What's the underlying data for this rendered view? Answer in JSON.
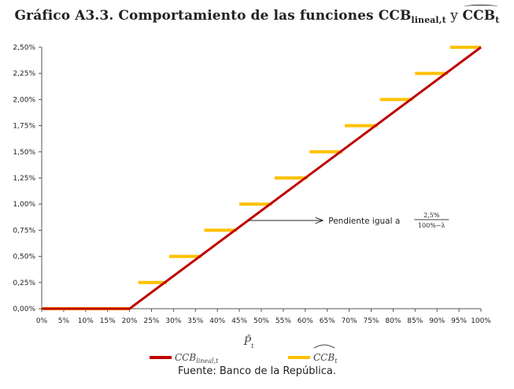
{
  "title": {
    "prefix": "Gráfico A3.3. Comportamiento de las funciones ",
    "s1_main": "CCB",
    "s1_sub": "lineal,t",
    "joiner": " y ",
    "s2_main": "CCB",
    "s2_sub": "t"
  },
  "source": "Fuente: Banco de la República.",
  "chart_data": {
    "type": "line",
    "xlabel": "P̂",
    "xlabel_sub": "t",
    "x_ticks": [
      "0%",
      "5%",
      "10%",
      "15%",
      "20%",
      "25%",
      "30%",
      "35%",
      "40%",
      "45%",
      "50%",
      "55%",
      "60%",
      "65%",
      "70%",
      "75%",
      "80%",
      "85%",
      "90%",
      "95%",
      "100%"
    ],
    "y_ticks": [
      "0,00%",
      "0,25%",
      "0,50%",
      "0,75%",
      "1,00%",
      "1,25%",
      "1,50%",
      "1,75%",
      "2,00%",
      "2,25%",
      "2,50%"
    ],
    "xlim": [
      0,
      100
    ],
    "ylim": [
      0,
      2.5
    ],
    "grid": false,
    "legend_position": "bottom",
    "series": [
      {
        "name": "CCB",
        "name_sub": "lineal,t",
        "type": "line",
        "color": "#c00000",
        "x": [
          0,
          20,
          100
        ],
        "y": [
          0,
          0,
          2.5
        ]
      },
      {
        "name": "CCB",
        "name_sub": "t",
        "type": "step-segments",
        "color": "#ffc000",
        "segments": [
          {
            "x0": 0,
            "x1": 20,
            "y": 0
          },
          {
            "x0": 22,
            "x1": 28.5,
            "y": 0.25
          },
          {
            "x0": 29,
            "x1": 36.5,
            "y": 0.5
          },
          {
            "x0": 37,
            "x1": 44.5,
            "y": 0.75
          },
          {
            "x0": 45,
            "x1": 52.5,
            "y": 1.0
          },
          {
            "x0": 53,
            "x1": 60.5,
            "y": 1.25
          },
          {
            "x0": 61,
            "x1": 68.5,
            "y": 1.5
          },
          {
            "x0": 69,
            "x1": 76.5,
            "y": 1.75
          },
          {
            "x0": 77,
            "x1": 84.5,
            "y": 2.0
          },
          {
            "x0": 85,
            "x1": 92.5,
            "y": 2.25
          },
          {
            "x0": 93,
            "x1": 100,
            "y": 2.5
          }
        ]
      }
    ],
    "annotation": {
      "text": "Pendiente igual a ",
      "numerator": "2,5%",
      "denominator": "100%−λ",
      "arrow_from_x": 47
    }
  }
}
